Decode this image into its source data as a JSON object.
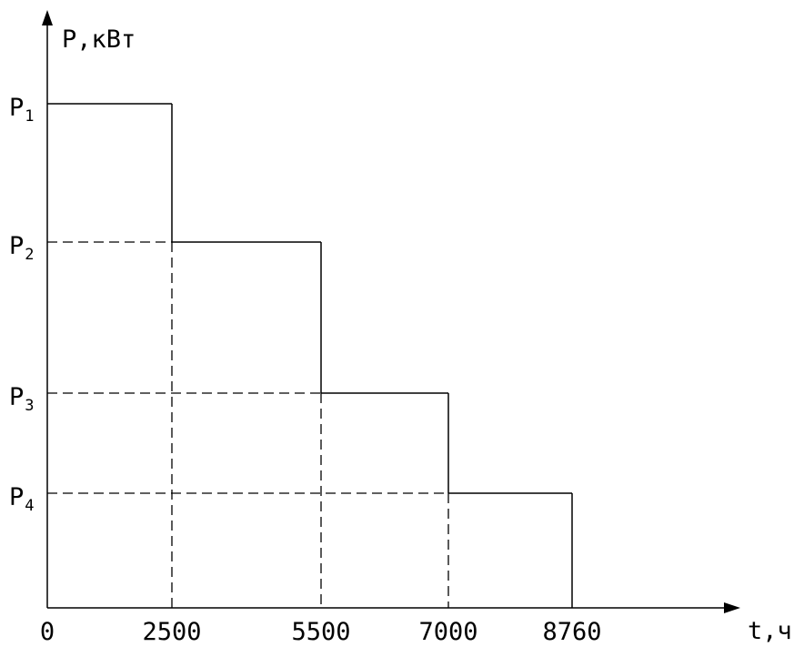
{
  "chart_data": {
    "type": "step",
    "xlabel": "t,ч",
    "ylabel": "P,кВт",
    "x_ticks": [
      "0",
      "2500",
      "5500",
      "7000",
      "8760"
    ],
    "y_levels": [
      {
        "base": "P",
        "sub": "1"
      },
      {
        "base": "P",
        "sub": "2"
      },
      {
        "base": "P",
        "sub": "3"
      },
      {
        "base": "P",
        "sub": "4"
      }
    ],
    "steps": [
      {
        "x_start": 0,
        "x_end": 2500,
        "level": "P1"
      },
      {
        "x_start": 2500,
        "x_end": 5500,
        "level": "P2"
      },
      {
        "x_start": 5500,
        "x_end": 7000,
        "level": "P3"
      },
      {
        "x_start": 7000,
        "x_end": 8760,
        "level": "P4"
      }
    ],
    "x_range": [
      0,
      8760
    ],
    "grid": false,
    "colors": {
      "line": "#000000",
      "background": "#ffffff"
    }
  }
}
